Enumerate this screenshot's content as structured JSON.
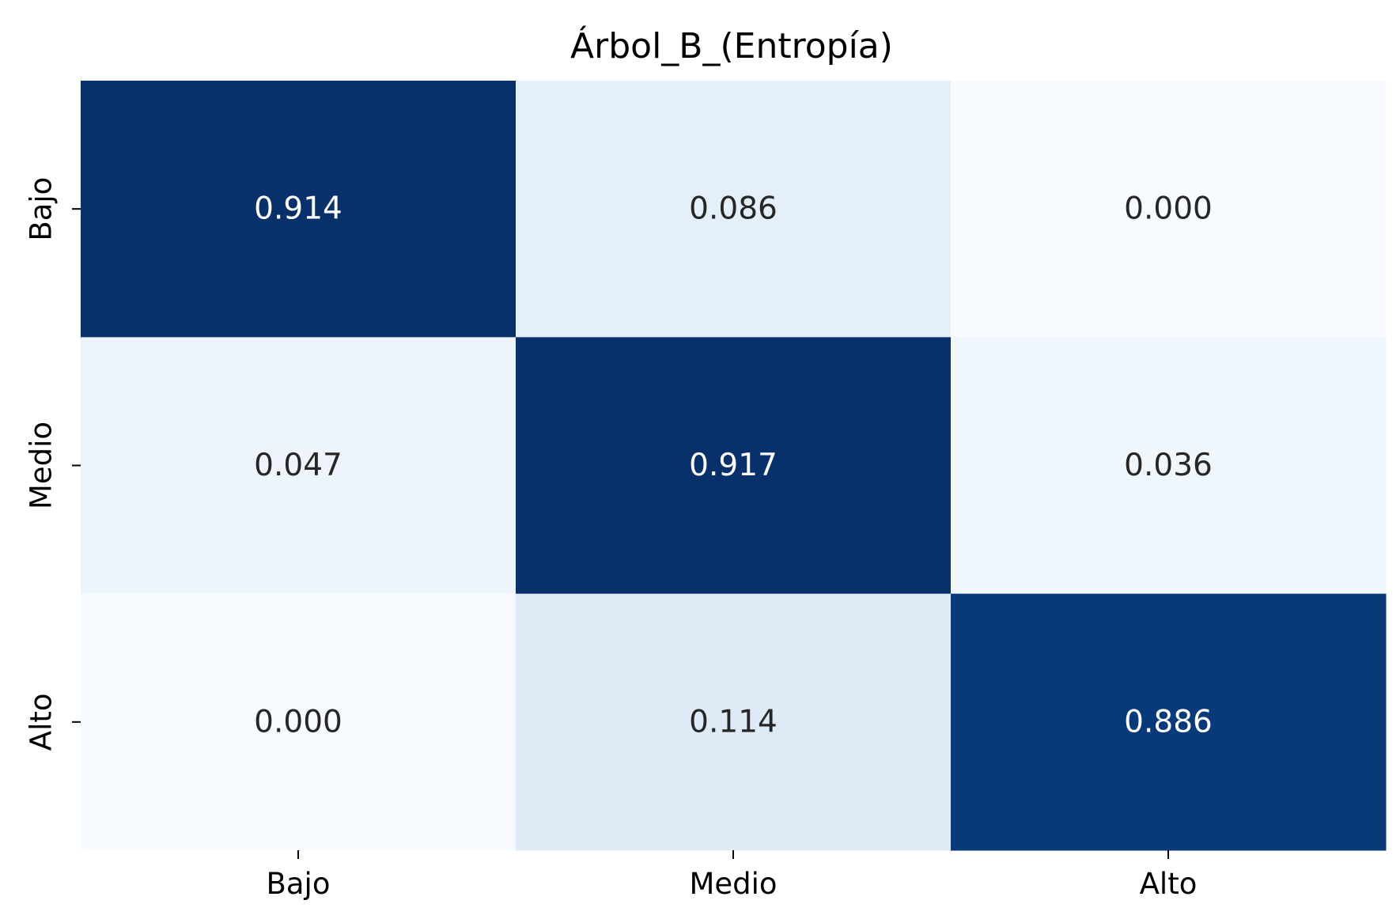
{
  "chart_data": {
    "type": "heatmap",
    "title": "Árbol_B_(Entropía)",
    "xlabel": "",
    "ylabel": "",
    "x_categories": [
      "Bajo",
      "Medio",
      "Alto"
    ],
    "y_categories": [
      "Bajo",
      "Medio",
      "Alto"
    ],
    "values": [
      [
        0.914,
        0.086,
        0.0
      ],
      [
        0.047,
        0.917,
        0.036
      ],
      [
        0.0,
        0.114,
        0.886
      ]
    ],
    "value_labels": [
      [
        "0.914",
        "0.086",
        "0.000"
      ],
      [
        "0.047",
        "0.917",
        "0.036"
      ],
      [
        "0.000",
        "0.114",
        "0.886"
      ]
    ],
    "colormap": "Blues",
    "color_low": "#f7fbff",
    "color_high": "#08306b",
    "text_color_dark": "#262626",
    "text_color_light": "#ffffff",
    "colorbar": false,
    "grid": false
  }
}
